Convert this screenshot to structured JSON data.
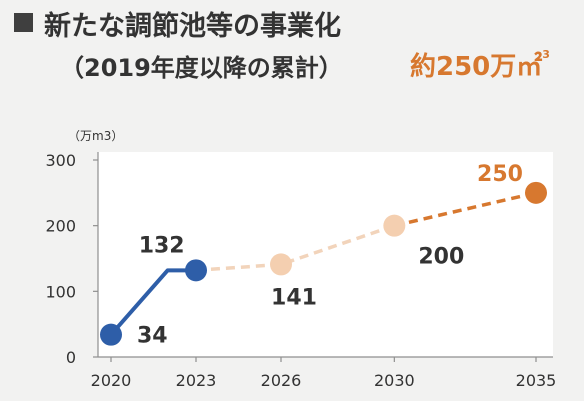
{
  "title": {
    "line1": "新たな調節池等の事業化",
    "line2": "（2019年度以降の累計）",
    "total_value": "約250万",
    "total_unit": "㎡",
    "total_unit_sup": "3"
  },
  "chart_data": {
    "type": "line",
    "ylabel": "（万m3）",
    "ylim": [
      0,
      300
    ],
    "yticks": [
      0,
      100,
      200,
      300
    ],
    "xticks": [
      2020,
      2023,
      2026,
      2030,
      2035
    ],
    "xlim": [
      2020,
      2035
    ],
    "grid": false,
    "series": [
      {
        "style": "solid",
        "color": "#2e5ea8",
        "points": [
          {
            "x": 2020,
            "y": 34,
            "label": "34",
            "marker": true
          },
          {
            "x": 2022,
            "y": 132,
            "label": "132",
            "marker": false
          },
          {
            "x": 2023,
            "y": 132,
            "label": "",
            "marker": true
          }
        ]
      },
      {
        "style": "dashed",
        "color": "#f2d4bb",
        "points": [
          {
            "x": 2023,
            "y": 132,
            "label": "",
            "marker": false
          },
          {
            "x": 2026,
            "y": 141,
            "label": "141",
            "marker": true
          },
          {
            "x": 2030,
            "y": 200,
            "label": "",
            "marker": false
          }
        ]
      },
      {
        "style": "dashed",
        "color": "#d7782f",
        "points": [
          {
            "x": 2030,
            "y": 200,
            "label": "200",
            "marker": true
          },
          {
            "x": 2035,
            "y": 250,
            "label": "250",
            "marker": true
          }
        ]
      }
    ]
  },
  "colors": {
    "text": "#333333",
    "axis": "#8f8f8f",
    "plot_bg": "#ffffff",
    "accent": "#d7782f",
    "marker_mid": "#f4cfb0"
  }
}
